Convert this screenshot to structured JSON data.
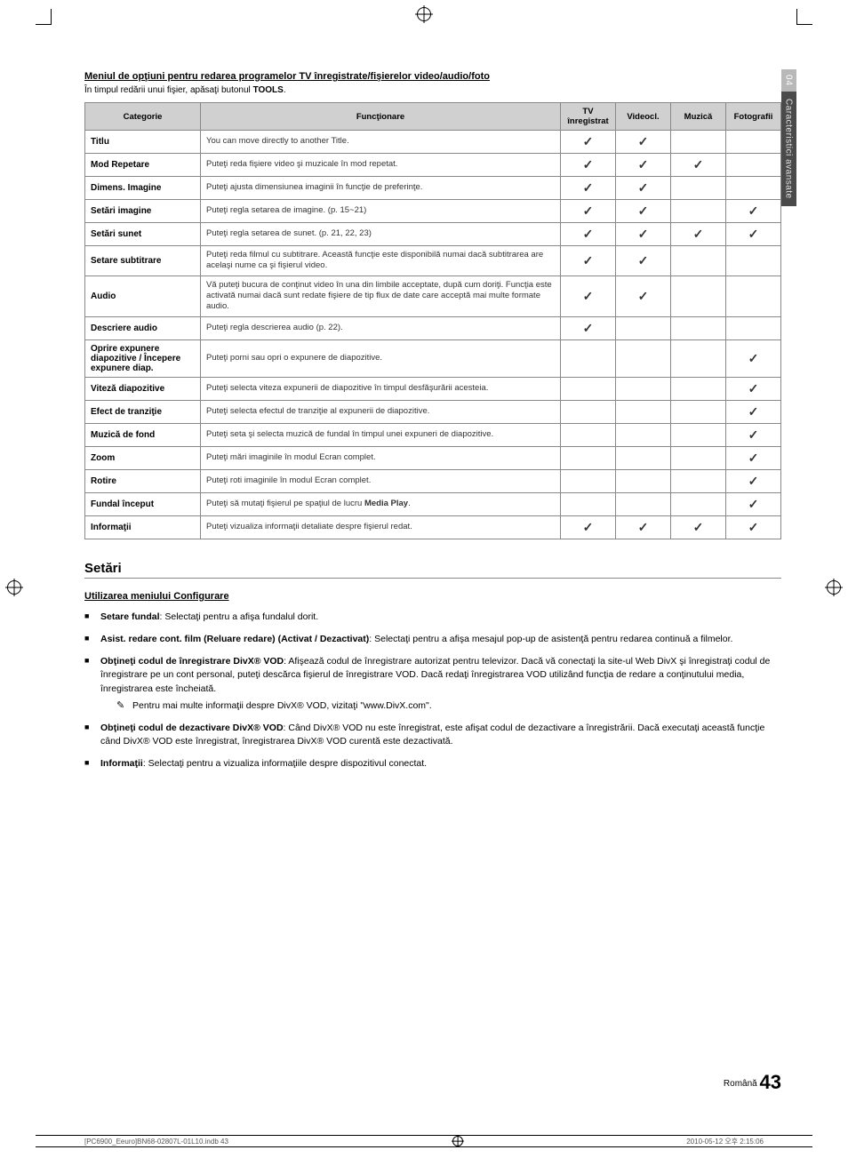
{
  "side": {
    "num": "04",
    "label": "Caracteristici avansate"
  },
  "section_title": "Meniul de opţiuni pentru redarea programelor TV înregistrate/fişierelor video/audio/foto",
  "intro_a": "În timpul redării unui fişier, apăsaţi butonul ",
  "intro_b": "TOOLS",
  "intro_c": ".",
  "table": {
    "headers": {
      "cat": "Categorie",
      "func": "Funcţionare",
      "c1": "TV înregistrat",
      "c2": "Videocl.",
      "c3": "Muzică",
      "c4": "Fotografii"
    },
    "rows": [
      {
        "cat": "Titlu",
        "func": "You can move directly to another Title.",
        "c": [
          true,
          true,
          false,
          false
        ]
      },
      {
        "cat": "Mod Repetare",
        "func": "Puteţi reda fişiere video şi muzicale în mod repetat.",
        "c": [
          true,
          true,
          true,
          false
        ]
      },
      {
        "cat": "Dimens. Imagine",
        "func": "Puteţi ajusta dimensiunea imaginii în funcţie de preferinţe.",
        "c": [
          true,
          true,
          false,
          false
        ]
      },
      {
        "cat": "Setări imagine",
        "func": "Puteţi regla setarea de imagine. (p. 15~21)",
        "c": [
          true,
          true,
          false,
          true
        ]
      },
      {
        "cat": "Setări sunet",
        "func": "Puteţi regla setarea de sunet. (p. 21, 22, 23)",
        "c": [
          true,
          true,
          true,
          true
        ]
      },
      {
        "cat": "Setare subtitrare",
        "func": "Puteţi reda filmul cu subtitrare. Această funcţie este disponibilă numai dacă subtitrarea are acelaşi nume ca şi fişierul video.",
        "c": [
          true,
          true,
          false,
          false
        ]
      },
      {
        "cat": "Audio",
        "func": "Vă puteţi bucura de conţinut video în una din limbile acceptate, după cum doriţi. Funcţia este activată numai dacă sunt redate fişiere de tip flux de date care acceptă mai multe formate audio.",
        "c": [
          true,
          true,
          false,
          false
        ]
      },
      {
        "cat": "Descriere audio",
        "func": "Puteţi regla descrierea audio (p. 22).",
        "c": [
          true,
          false,
          false,
          false
        ]
      },
      {
        "cat": "Oprire expunere diapozitive / Începere expunere diap.",
        "func": "Puteţi porni sau opri o expunere de diapozitive.",
        "c": [
          false,
          false,
          false,
          true
        ]
      },
      {
        "cat": "Viteză diapozitive",
        "func": "Puteţi selecta viteza expunerii de diapozitive în timpul desfăşurării acesteia.",
        "c": [
          false,
          false,
          false,
          true
        ]
      },
      {
        "cat": "Efect de tranziţie",
        "func": "Puteţi selecta efectul de tranziţie al expunerii de diapozitive.",
        "c": [
          false,
          false,
          false,
          true
        ]
      },
      {
        "cat": "Muzică de fond",
        "func": "Puteţi seta şi selecta muzică de fundal în timpul unei expuneri de diapozitive.",
        "c": [
          false,
          false,
          false,
          true
        ]
      },
      {
        "cat": "Zoom",
        "func": "Puteţi mări imaginile în modul Ecran complet.",
        "c": [
          false,
          false,
          false,
          true
        ]
      },
      {
        "cat": "Rotire",
        "func": "Puteţi roti imaginile în modul Ecran complet.",
        "c": [
          false,
          false,
          false,
          true
        ]
      },
      {
        "cat": "Fundal început",
        "func_a": "Puteţi să mutaţi fişierul pe spaţiul de lucru ",
        "func_b": "Media Play",
        "func_c": ".",
        "c": [
          false,
          false,
          false,
          true
        ]
      },
      {
        "cat": "Informaţii",
        "func": "Puteţi vizualiza informaţii detaliate despre fişierul redat.",
        "c": [
          true,
          true,
          true,
          true
        ]
      }
    ]
  },
  "setari_heading": "Setări",
  "config_title": "Utilizarea meniului Configurare",
  "bullets": {
    "b1_a": "Setare fundal",
    "b1_b": ": Selectaţi pentru a afişa fundalul dorit.",
    "b2_a": "Asist. redare cont. film (Reluare redare) (Activat / Dezactivat)",
    "b2_b": ": Selectaţi pentru a afişa mesajul pop-up de asistenţă pentru redarea continuă a filmelor.",
    "b3_a": "Obţineţi codul de înregistrare DivX® VOD",
    "b3_b": ": Afişează codul de înregistrare autorizat pentru televizor. Dacă vă conectaţi la site-ul Web DivX şi înregistraţi codul de înregistrare pe un cont personal, puteţi descărca fişierul de înregistrare VOD. Dacă redaţi înregistrarea VOD utilizând funcţia de redare a conţinutului media, înregistrarea este încheiată.",
    "b3_note": "Pentru mai multe informaţii despre DivX® VOD, vizitaţi \"www.DivX.com\".",
    "b4_a": "Obţineţi codul de dezactivare DivX® VOD",
    "b4_b": ": Când DivX® VOD nu este înregistrat, este afişat codul de dezactivare a înregistrării. Dacă executaţi această funcţie când DivX® VOD este înregistrat, înregistrarea DivX® VOD curentă este dezactivată.",
    "b5_a": "Informaţii",
    "b5_b": ": Selectaţi pentru a vizualiza informaţiile despre dispozitivul conectat."
  },
  "page": {
    "lang": "Română",
    "num": "43"
  },
  "footer": {
    "left": "[PC6900_Eeuro]BN68-02807L-01L10.indb   43",
    "right": "2010-05-12   오후 2:15:06"
  }
}
